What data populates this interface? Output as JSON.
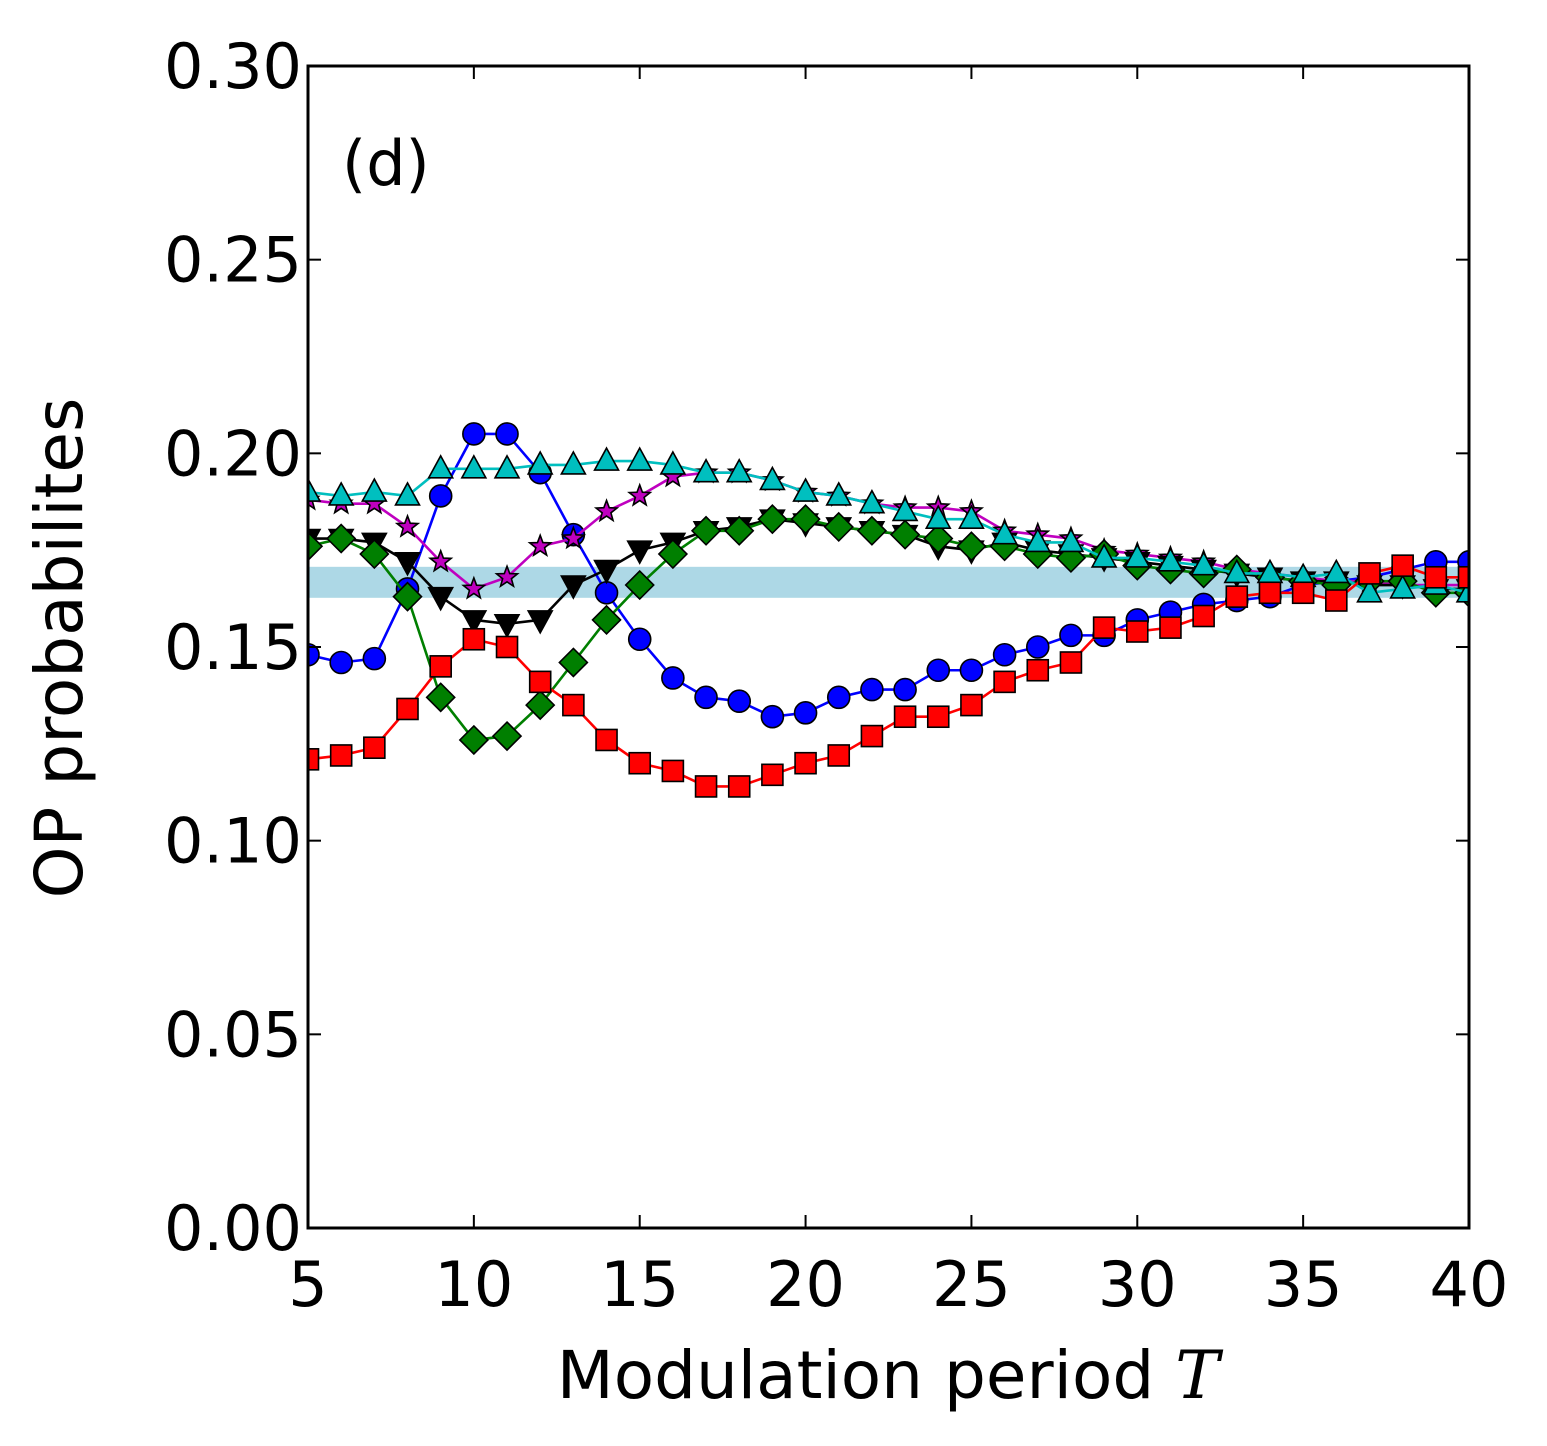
{
  "chart_data": {
    "type": "line",
    "panel_label": "(d)",
    "xlabel": "Modulation period",
    "xlabel_var": "T",
    "ylabel": "OP probabilites",
    "xlim": [
      5,
      40
    ],
    "ylim": [
      0,
      0.3
    ],
    "xticks": [
      5,
      10,
      15,
      20,
      25,
      30,
      35,
      40
    ],
    "yticks": [
      0.0,
      0.05,
      0.1,
      0.15,
      0.2,
      0.25,
      0.3
    ],
    "xtick_labels": [
      "5",
      "10",
      "15",
      "20",
      "25",
      "30",
      "35",
      "40"
    ],
    "ytick_labels": [
      "0.00",
      "0.05",
      "0.10",
      "0.15",
      "0.20",
      "0.25",
      "0.30"
    ],
    "band": {
      "y_low": 0.1627,
      "y_high": 0.1707,
      "color": "#add8e6"
    },
    "x": [
      5,
      6,
      7,
      8,
      9,
      10,
      11,
      12,
      13,
      14,
      15,
      16,
      17,
      18,
      19,
      20,
      21,
      22,
      23,
      24,
      25,
      26,
      27,
      28,
      29,
      30,
      31,
      32,
      33,
      34,
      35,
      36,
      37,
      38,
      39,
      40
    ],
    "series": [
      {
        "name": "blue-circle",
        "color": "#0000ff",
        "marker": "circle",
        "values": [
          0.148,
          0.146,
          0.147,
          0.165,
          0.189,
          0.205,
          0.205,
          0.195,
          0.179,
          0.164,
          0.152,
          0.142,
          0.137,
          0.136,
          0.132,
          0.133,
          0.137,
          0.139,
          0.139,
          0.144,
          0.144,
          0.148,
          0.15,
          0.153,
          0.153,
          0.157,
          0.159,
          0.161,
          0.162,
          0.163,
          0.166,
          0.167,
          0.168,
          0.17,
          0.172,
          0.172
        ]
      },
      {
        "name": "magenta-star",
        "color": "#bf00bf",
        "marker": "star",
        "values": [
          0.188,
          0.187,
          0.187,
          0.181,
          0.172,
          0.165,
          0.168,
          0.176,
          0.178,
          0.185,
          0.189,
          0.194,
          0.195,
          0.195,
          0.193,
          0.19,
          0.189,
          0.187,
          0.186,
          0.186,
          0.185,
          0.18,
          0.179,
          0.178,
          0.175,
          0.174,
          0.173,
          0.172,
          0.17,
          0.169,
          0.168,
          0.167,
          0.167,
          0.166,
          0.166,
          0.166
        ]
      },
      {
        "name": "black-triangle-down",
        "color": "#000000",
        "marker": "triangle-down",
        "values": [
          0.178,
          0.178,
          0.177,
          0.172,
          0.163,
          0.157,
          0.156,
          0.157,
          0.166,
          0.17,
          0.175,
          0.177,
          0.18,
          0.181,
          0.183,
          0.182,
          0.181,
          0.18,
          0.179,
          0.176,
          0.175,
          0.177,
          0.175,
          0.174,
          0.173,
          0.172,
          0.171,
          0.17,
          0.169,
          0.168,
          0.167,
          0.167,
          0.166,
          0.166,
          0.165,
          0.165
        ]
      },
      {
        "name": "green-diamond",
        "color": "#007f00",
        "marker": "diamond",
        "values": [
          0.176,
          0.178,
          0.174,
          0.163,
          0.137,
          0.126,
          0.127,
          0.135,
          0.146,
          0.157,
          0.166,
          0.174,
          0.18,
          0.18,
          0.183,
          0.183,
          0.181,
          0.18,
          0.179,
          0.178,
          0.176,
          0.176,
          0.174,
          0.173,
          0.174,
          0.171,
          0.17,
          0.169,
          0.17,
          0.168,
          0.167,
          0.166,
          0.167,
          0.167,
          0.164,
          0.164
        ]
      },
      {
        "name": "cyan-triangle-up",
        "color": "#00bfbf",
        "marker": "triangle-up",
        "values": [
          0.19,
          0.189,
          0.19,
          0.189,
          0.196,
          0.196,
          0.196,
          0.197,
          0.197,
          0.198,
          0.198,
          0.197,
          0.195,
          0.195,
          0.193,
          0.19,
          0.189,
          0.187,
          0.185,
          0.183,
          0.183,
          0.179,
          0.177,
          0.177,
          0.173,
          0.173,
          0.172,
          0.171,
          0.169,
          0.169,
          0.168,
          0.169,
          0.164,
          0.165,
          0.166,
          0.164
        ]
      },
      {
        "name": "red-square",
        "color": "#ff0000",
        "marker": "square",
        "values": [
          0.121,
          0.122,
          0.124,
          0.134,
          0.145,
          0.152,
          0.15,
          0.141,
          0.135,
          0.126,
          0.12,
          0.118,
          0.114,
          0.114,
          0.117,
          0.12,
          0.122,
          0.127,
          0.132,
          0.132,
          0.135,
          0.141,
          0.144,
          0.146,
          0.155,
          0.154,
          0.155,
          0.158,
          0.163,
          0.164,
          0.164,
          0.162,
          0.169,
          0.171,
          0.168,
          0.168
        ]
      }
    ]
  }
}
